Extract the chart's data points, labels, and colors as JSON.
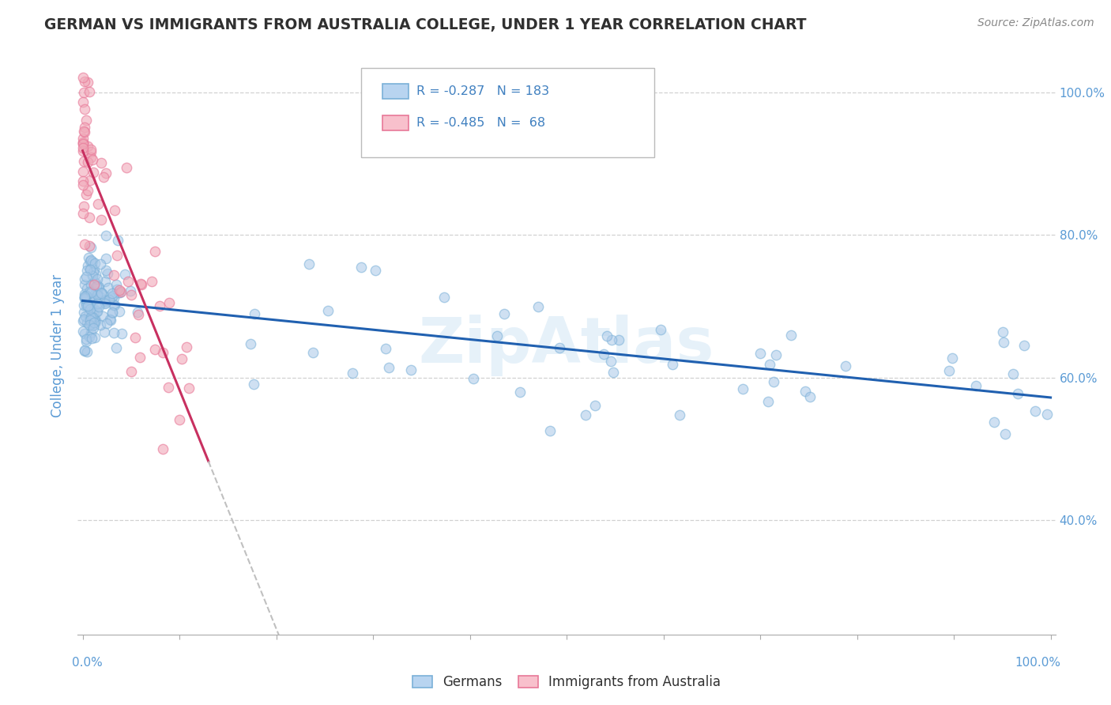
{
  "title": "GERMAN VS IMMIGRANTS FROM AUSTRALIA COLLEGE, UNDER 1 YEAR CORRELATION CHART",
  "source": "Source: ZipAtlas.com",
  "ylabel": "College, Under 1 year",
  "legend_labels": [
    "Germans",
    "Immigrants from Australia"
  ],
  "r_blue": -0.287,
  "n_blue": 183,
  "r_pink": -0.485,
  "n_pink": 68,
  "blue_dot_color": "#a8c8e8",
  "pink_dot_color": "#f0a8b8",
  "blue_edge_color": "#7ab0d8",
  "pink_edge_color": "#e87898",
  "blue_fill_legend": "#b8d4f0",
  "pink_fill_legend": "#f8c0cc",
  "trendline_blue": "#2060b0",
  "trendline_pink_solid": "#c83060",
  "trendline_pink_dashed": "#c0c0c0",
  "background_color": "#ffffff",
  "grid_color": "#cccccc",
  "title_color": "#303030",
  "axis_tick_color": "#5b9bd5",
  "legend_text_color": "#4080c0",
  "watermark_color": "#b8d8f0",
  "seed": 123
}
